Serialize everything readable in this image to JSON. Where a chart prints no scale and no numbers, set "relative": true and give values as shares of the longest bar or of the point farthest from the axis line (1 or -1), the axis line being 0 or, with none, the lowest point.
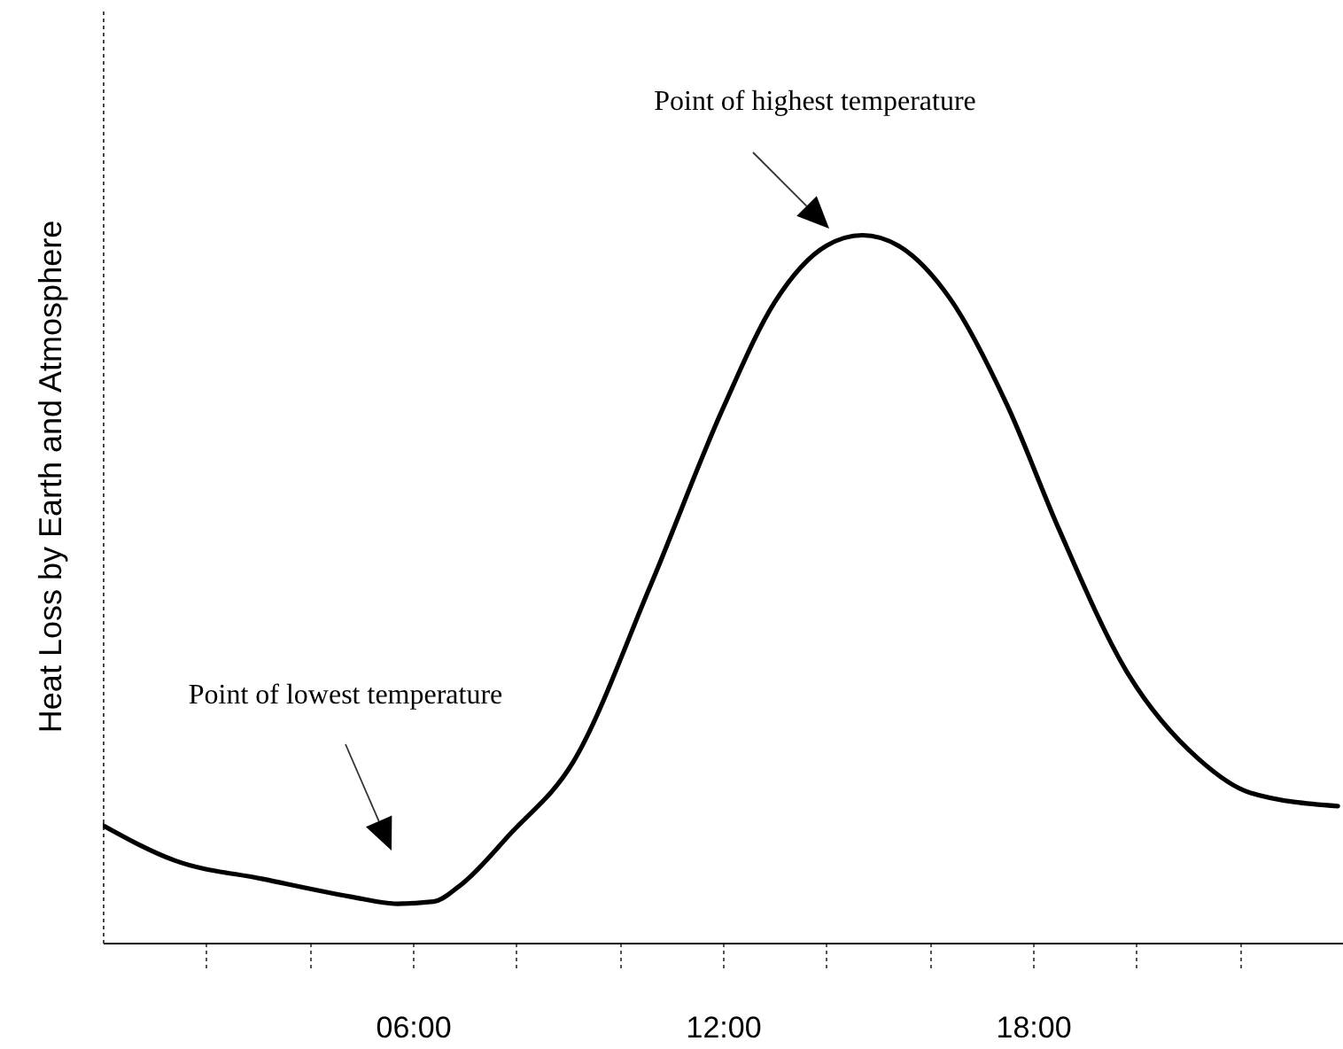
{
  "chart_data": {
    "type": "line",
    "ylabel": "Heat Loss by Earth and Atmosphere",
    "relative": true,
    "x": [
      0,
      1.4,
      3.1,
      4.8,
      5.7,
      6.4,
      6.9,
      7.9,
      9.1,
      10.6,
      12.0,
      13.0,
      14.0,
      14.7,
      15.4,
      16.4,
      17.5,
      18.5,
      19.8,
      21.2,
      22.2,
      23.9
    ],
    "series": [
      {
        "color": "#000000",
        "values": [
          0.166,
          0.116,
          0.09,
          0.065,
          0.055,
          0.058,
          0.08,
          0.155,
          0.255,
          0.505,
          0.755,
          0.905,
          0.985,
          1,
          0.985,
          0.91,
          0.76,
          0.585,
          0.385,
          0.26,
          0.212,
          0.193
        ]
      }
    ],
    "xlim": [
      0,
      24
    ],
    "xticks": [
      {
        "value": 2,
        "label": null
      },
      {
        "value": 4,
        "label": null
      },
      {
        "value": 6,
        "label": "06:00"
      },
      {
        "value": 8,
        "label": null
      },
      {
        "value": 10,
        "label": null
      },
      {
        "value": 12,
        "label": "12:00"
      },
      {
        "value": 14,
        "label": null
      },
      {
        "value": 16,
        "label": null
      },
      {
        "value": 18,
        "label": "18:00"
      },
      {
        "value": 20,
        "label": null
      },
      {
        "value": 22,
        "label": null
      }
    ],
    "annotations": [
      "Point of lowest temperature",
      "Point of highest temperature"
    ],
    "grid": false,
    "marker": "none",
    "line_style": "solid"
  }
}
